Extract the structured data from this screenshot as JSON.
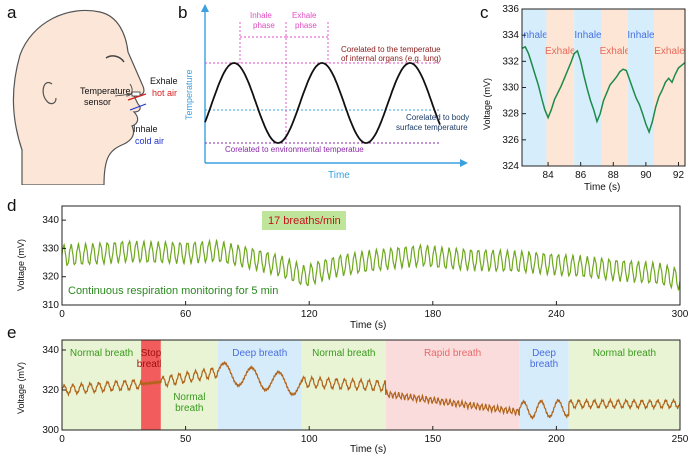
{
  "panel_labels": {
    "a": "a",
    "b": "b",
    "c": "c",
    "d": "d",
    "e": "e"
  },
  "panel_a": {
    "temp_sensor": [
      "Temperature",
      "sensor"
    ],
    "exhale": "Exhale",
    "hot_air": "hot air",
    "inhale": "Inhale",
    "cold_air": "cold air",
    "colors": {
      "hot": "#d62020",
      "cold": "#2233cc",
      "skin": "#fbe6d8"
    }
  },
  "panel_b": {
    "ylabel": "Temperature",
    "xlabel": "Time",
    "inhale_phase": [
      "Inhale",
      "phase"
    ],
    "exhale_phase": [
      "Exhale",
      "phase"
    ],
    "note_organs": [
      "Corelated to the temperatue",
      "of internal organs (e.g. lung)"
    ],
    "note_body": [
      "Corelated to body",
      "surface temperature"
    ],
    "note_env": "Corelated to environmental temperatue",
    "colors": {
      "axis": "#3aa0e0",
      "phase": "#e04cc4",
      "organs": "#8b1a1a",
      "body": "#1b3a66",
      "env": "#8a2aa8"
    }
  },
  "chart_data": [
    {
      "panel": "c",
      "type": "line",
      "xlabel": "Time (s)",
      "ylabel": "Voltage (mV)",
      "xlim": [
        82.4,
        92.4
      ],
      "ylim": [
        324,
        336
      ],
      "xticks": [
        84,
        86,
        88,
        90,
        92
      ],
      "yticks": [
        324,
        326,
        328,
        330,
        332,
        334,
        336
      ],
      "bands": [
        {
          "label": "Inhale",
          "from": 82.4,
          "to": 83.9,
          "color": "#d6eefb",
          "label_color": "#4a6ee0"
        },
        {
          "label": "Exhale",
          "from": 83.9,
          "to": 85.6,
          "color": "#fde6d6",
          "label_color": "#e86a5a"
        },
        {
          "label": "Inhale",
          "from": 85.6,
          "to": 87.3,
          "color": "#d6eefb",
          "label_color": "#4a6ee0"
        },
        {
          "label": "Exhale",
          "from": 87.3,
          "to": 88.9,
          "color": "#fde6d6",
          "label_color": "#e86a5a"
        },
        {
          "label": "Inhale",
          "from": 88.9,
          "to": 90.5,
          "color": "#d6eefb",
          "label_color": "#4a6ee0"
        },
        {
          "label": "Exhale",
          "from": 90.5,
          "to": 92.4,
          "color": "#fde6d6",
          "label_color": "#e86a5a"
        }
      ],
      "line_color": "#1e8a4a",
      "x": [
        82.4,
        82.6,
        82.8,
        83.0,
        83.2,
        83.4,
        83.6,
        83.8,
        84.0,
        84.2,
        84.4,
        84.6,
        84.8,
        85.0,
        85.2,
        85.4,
        85.6,
        85.8,
        86.0,
        86.2,
        86.4,
        86.6,
        86.8,
        87.0,
        87.2,
        87.4,
        87.6,
        87.8,
        88.0,
        88.2,
        88.4,
        88.6,
        88.8,
        89.0,
        89.2,
        89.4,
        89.6,
        89.8,
        90.0,
        90.2,
        90.4,
        90.6,
        90.8,
        91.0,
        91.2,
        91.4,
        91.6,
        91.8,
        92.0,
        92.2,
        92.4
      ],
      "y": [
        333.0,
        333.1,
        332.6,
        331.8,
        331.0,
        330.2,
        329.2,
        328.3,
        327.7,
        328.3,
        329.1,
        329.6,
        330.1,
        330.7,
        331.3,
        331.9,
        332.6,
        332.8,
        332.0,
        330.9,
        329.9,
        329.0,
        328.3,
        327.4,
        328.0,
        329.0,
        329.6,
        330.2,
        330.5,
        330.8,
        331.2,
        331.4,
        331.3,
        330.6,
        329.9,
        329.2,
        328.7,
        328.0,
        327.2,
        326.6,
        327.4,
        328.5,
        329.3,
        329.8,
        330.4,
        330.7,
        330.4,
        331.0,
        331.5,
        331.7,
        331.9
      ]
    },
    {
      "panel": "d",
      "type": "line",
      "xlabel": "Time (s)",
      "ylabel": "Voltage (mV)",
      "xlim": [
        0,
        300
      ],
      "ylim": [
        310,
        345
      ],
      "xticks": [
        0,
        60,
        120,
        180,
        240,
        300
      ],
      "yticks": [
        310,
        320,
        330,
        340
      ],
      "line_color": "#6fa81e",
      "rate_label": "17 breaths/min",
      "annotation": "Continuous respiration monitoring for 5 min",
      "baseline_x": [
        0,
        15,
        30,
        45,
        60,
        75,
        85,
        95,
        105,
        112,
        118,
        125,
        135,
        150,
        165,
        175,
        185,
        200,
        215,
        230,
        245,
        260,
        275,
        290,
        300
      ],
      "baseline_y": [
        327.5,
        328,
        329,
        328.5,
        328.5,
        329,
        327.5,
        326,
        324,
        322,
        320,
        322,
        324,
        325.5,
        327,
        327.5,
        326.5,
        326,
        325.5,
        325,
        324,
        323,
        322,
        321,
        319
      ],
      "breath_period_s": 3.53,
      "breath_amplitude_mv": 3.5
    },
    {
      "panel": "e",
      "type": "line",
      "xlabel": "Time (s)",
      "ylabel": "Voltage (mV)",
      "xlim": [
        0,
        250
      ],
      "ylim": [
        300,
        345
      ],
      "xticks": [
        0,
        50,
        100,
        150,
        200,
        250
      ],
      "yticks": [
        300,
        320,
        340
      ],
      "line_color": "#b0631a",
      "bands": [
        {
          "label": [
            "Normal breath"
          ],
          "from": 0,
          "to": 32,
          "color": "#e8f4d4",
          "label_color": "#3a9a1e",
          "label_pos": "top"
        },
        {
          "label": [
            "Stop",
            "breath"
          ],
          "from": 32,
          "to": 40,
          "color": "#f25c5c",
          "label_color": "#a01010",
          "label_pos": "top"
        },
        {
          "label": [
            "Normal",
            "breath"
          ],
          "from": 40,
          "to": 63,
          "color": "#e8f4d4",
          "label_color": "#3a9a1e",
          "label_pos": "bottom"
        },
        {
          "label": [
            "Deep breath"
          ],
          "from": 63,
          "to": 97,
          "color": "#d6ecfa",
          "label_color": "#4a6ee0",
          "label_pos": "top"
        },
        {
          "label": [
            "Normal breath"
          ],
          "from": 97,
          "to": 131,
          "color": "#e8f4d4",
          "label_color": "#3a9a1e",
          "label_pos": "top"
        },
        {
          "label": [
            "Rapid breath"
          ],
          "from": 131,
          "to": 185,
          "color": "#fbdcdc",
          "label_color": "#e86a6a",
          "label_pos": "top"
        },
        {
          "label": [
            "Deep",
            "breath"
          ],
          "from": 185,
          "to": 205,
          "color": "#d6ecfa",
          "label_color": "#4a6ee0",
          "label_pos": "top"
        },
        {
          "label": [
            "Normal breath"
          ],
          "from": 205,
          "to": 250,
          "color": "#e8f4d4",
          "label_color": "#3a9a1e",
          "label_pos": "top"
        }
      ],
      "segments": [
        {
          "from": 0,
          "to": 32,
          "start": 320,
          "end": 323,
          "period": 3.5,
          "amp": 2.2
        },
        {
          "from": 32,
          "to": 40,
          "start": 323,
          "end": 324,
          "period": 0,
          "amp": 0
        },
        {
          "from": 40,
          "to": 63,
          "start": 324,
          "end": 329,
          "period": 3.3,
          "amp": 2.4
        },
        {
          "from": 63,
          "to": 97,
          "start": 329,
          "end": 322,
          "period": 11,
          "amp": 5
        },
        {
          "from": 97,
          "to": 131,
          "start": 324,
          "end": 322,
          "period": 3.3,
          "amp": 2.4
        },
        {
          "from": 131,
          "to": 185,
          "start": 318,
          "end": 309,
          "period": 1.6,
          "amp": 1.3
        },
        {
          "from": 185,
          "to": 205,
          "start": 310,
          "end": 311,
          "period": 7,
          "amp": 4
        },
        {
          "from": 205,
          "to": 250,
          "start": 313,
          "end": 313,
          "period": 3.2,
          "amp": 1.8
        }
      ]
    }
  ]
}
